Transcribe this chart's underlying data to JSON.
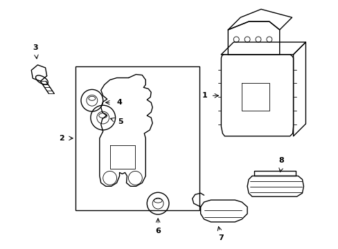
{
  "bg_color": "#ffffff",
  "line_color": "#000000",
  "lw": 1.0,
  "tlw": 0.6,
  "fig_width": 4.89,
  "fig_height": 3.6,
  "dpi": 100
}
